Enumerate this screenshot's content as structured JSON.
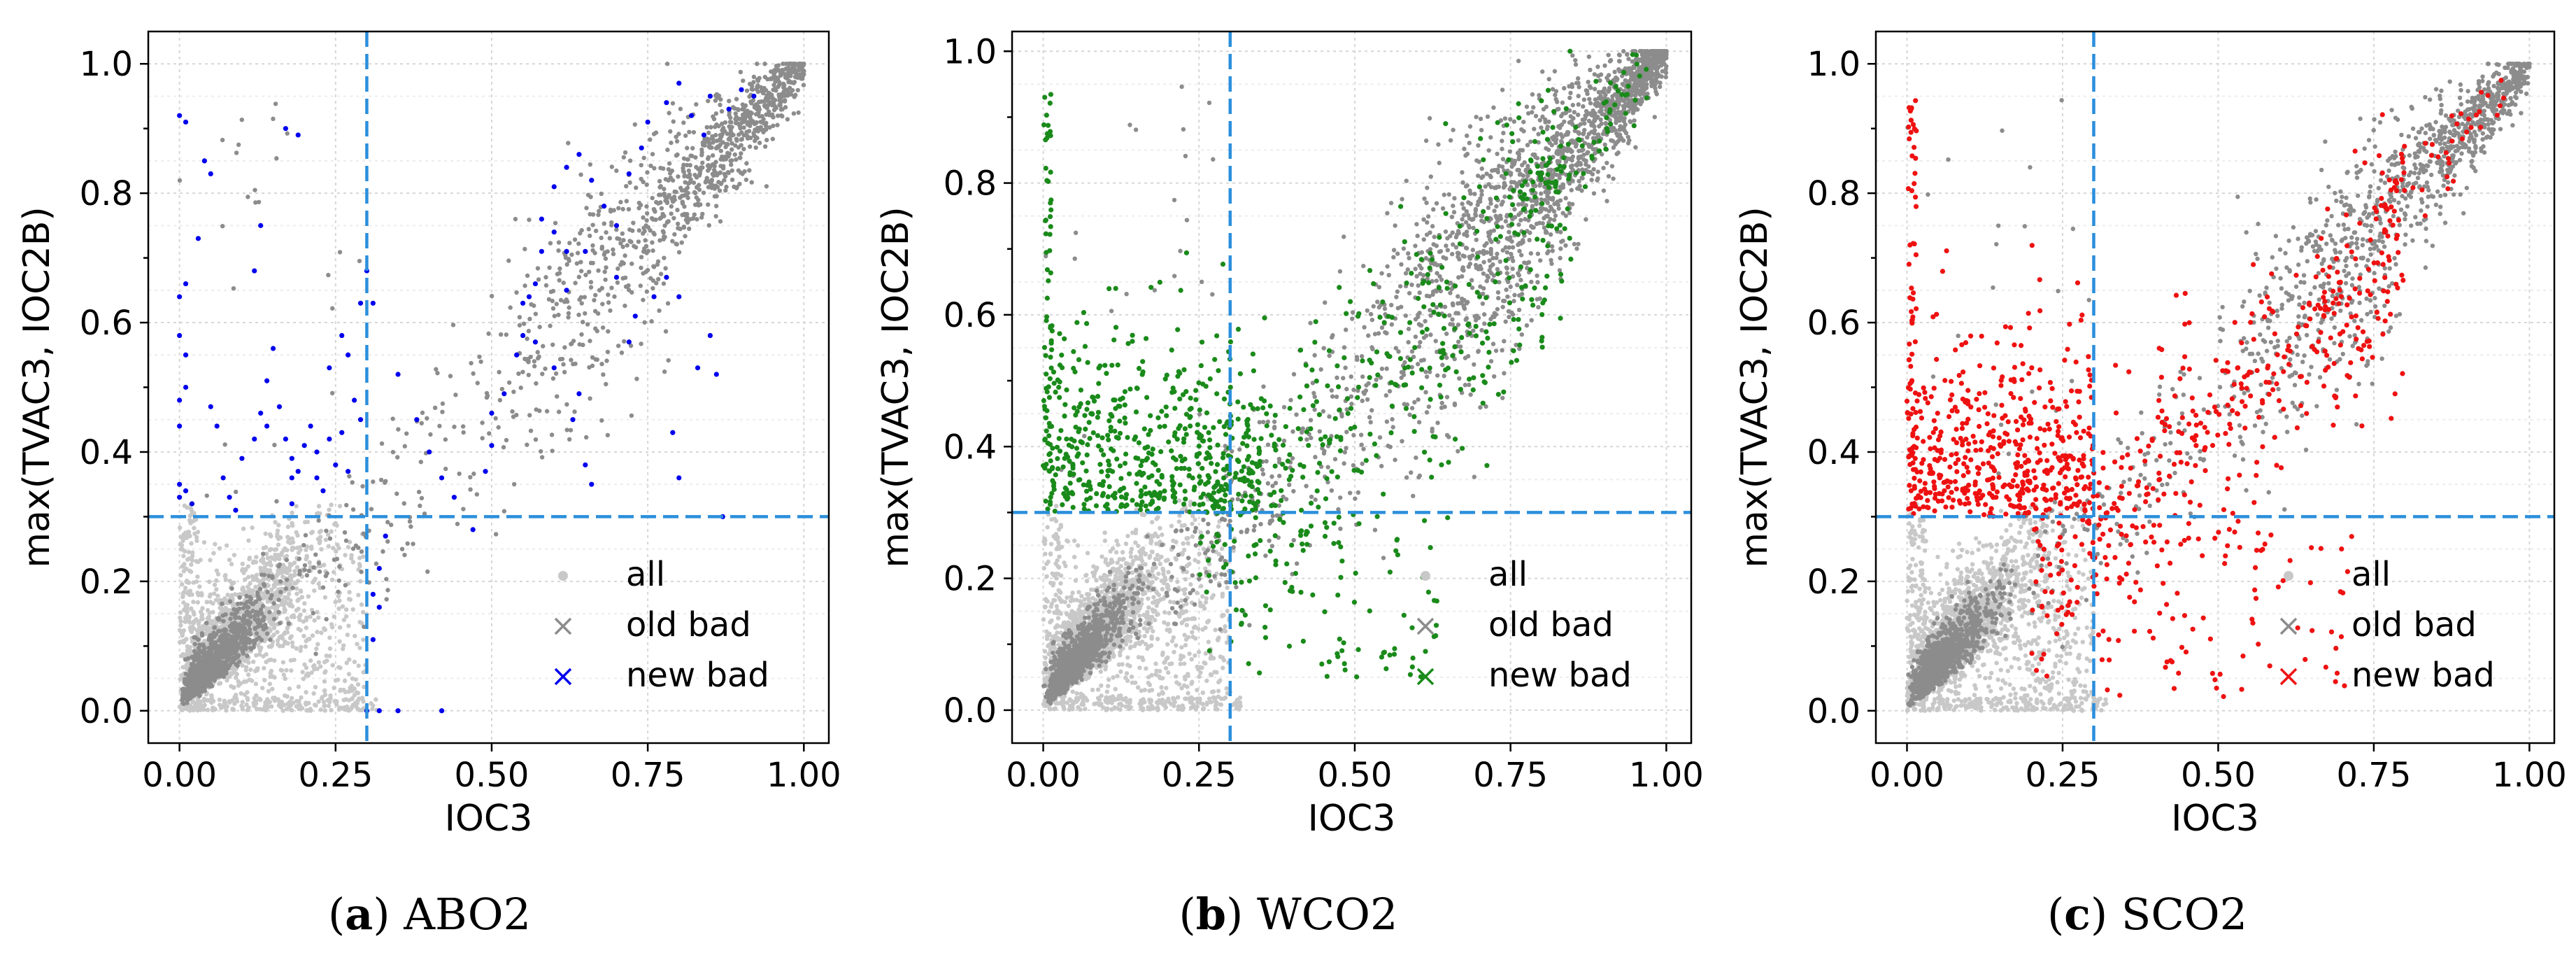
{
  "chart_data": [
    {
      "type": "scatter",
      "panel": "a",
      "caption_letter": "a",
      "caption_text": "ABO2",
      "xlabel": "IOC3",
      "ylabel": "max(TVAC3, IOC2B)",
      "xlim": [
        -0.05,
        1.04
      ],
      "ylim": [
        -0.05,
        1.05
      ],
      "xticks": [
        "0.00",
        "0.25",
        "0.50",
        "0.75",
        "1.00"
      ],
      "xtick_values": [
        0,
        0.25,
        0.5,
        0.75,
        1.0
      ],
      "yticks": [
        "0.0",
        "0.2",
        "0.4",
        "0.6",
        "0.8",
        "1.0"
      ],
      "ytick_values": [
        0,
        0.2,
        0.4,
        0.6,
        0.8,
        1.0
      ],
      "threshold_x": 0.3,
      "threshold_y": 0.3,
      "grid": true,
      "legend": [
        "all",
        "old bad",
        "new bad"
      ],
      "legend_position": "lower-right",
      "new_bad_color": "#0000ee",
      "series": [
        {
          "name": "all",
          "color": "#c8c8c8",
          "description": "dense cloud near origin (0-0.3) plus diagonal band to (1,1)"
        },
        {
          "name": "old bad",
          "color": "#8c8c8c",
          "description": "diagonal band 0.6-1.0 and cluster near origin"
        },
        {
          "name": "new bad",
          "color": "#0000ee",
          "points": [
            [
              0.0,
              0.92
            ],
            [
              0.01,
              0.91
            ],
            [
              0.0,
              0.64
            ],
            [
              0.01,
              0.66
            ],
            [
              0.0,
              0.58
            ],
            [
              0.01,
              0.55
            ],
            [
              0.0,
              0.48
            ],
            [
              0.01,
              0.5
            ],
            [
              0.0,
              0.44
            ],
            [
              0.0,
              0.35
            ],
            [
              0.01,
              0.34
            ],
            [
              0.0,
              0.33
            ],
            [
              0.02,
              0.32
            ],
            [
              0.04,
              0.85
            ],
            [
              0.05,
              0.83
            ],
            [
              0.03,
              0.73
            ],
            [
              0.05,
              0.47
            ],
            [
              0.06,
              0.44
            ],
            [
              0.07,
              0.36
            ],
            [
              0.08,
              0.33
            ],
            [
              0.09,
              0.31
            ],
            [
              0.1,
              0.39
            ],
            [
              0.12,
              0.42
            ],
            [
              0.13,
              0.46
            ],
            [
              0.14,
              0.44
            ],
            [
              0.14,
              0.51
            ],
            [
              0.16,
              0.47
            ],
            [
              0.17,
              0.42
            ],
            [
              0.18,
              0.39
            ],
            [
              0.18,
              0.36
            ],
            [
              0.18,
              0.32
            ],
            [
              0.19,
              0.37
            ],
            [
              0.2,
              0.41
            ],
            [
              0.21,
              0.44
            ],
            [
              0.22,
              0.4
            ],
            [
              0.22,
              0.36
            ],
            [
              0.23,
              0.34
            ],
            [
              0.24,
              0.42
            ],
            [
              0.25,
              0.38
            ],
            [
              0.26,
              0.43
            ],
            [
              0.27,
              0.37
            ],
            [
              0.17,
              0.9
            ],
            [
              0.19,
              0.89
            ],
            [
              0.13,
              0.75
            ],
            [
              0.15,
              0.56
            ],
            [
              0.12,
              0.68
            ],
            [
              0.28,
              0.48
            ],
            [
              0.29,
              0.45
            ],
            [
              0.3,
              0.68
            ],
            [
              0.31,
              0.63
            ],
            [
              0.31,
              0.18
            ],
            [
              0.32,
              0.16
            ],
            [
              0.31,
              0.11
            ],
            [
              0.33,
              0.27
            ],
            [
              0.32,
              0.22
            ],
            [
              0.32,
              0.0
            ],
            [
              0.35,
              0.0
            ],
            [
              0.42,
              0.0
            ],
            [
              0.3,
              0.0
            ],
            [
              0.47,
              0.28
            ],
            [
              0.49,
              0.37
            ],
            [
              0.5,
              0.41
            ],
            [
              0.5,
              0.46
            ],
            [
              0.52,
              0.49
            ],
            [
              0.54,
              0.55
            ],
            [
              0.55,
              0.58
            ],
            [
              0.55,
              0.63
            ],
            [
              0.56,
              0.64
            ],
            [
              0.57,
              0.66
            ],
            [
              0.58,
              0.71
            ],
            [
              0.6,
              0.74
            ],
            [
              0.62,
              0.71
            ],
            [
              0.64,
              0.49
            ],
            [
              0.63,
              0.45
            ],
            [
              0.65,
              0.38
            ],
            [
              0.66,
              0.35
            ],
            [
              0.58,
              0.76
            ],
            [
              0.6,
              0.81
            ],
            [
              0.62,
              0.84
            ],
            [
              0.64,
              0.86
            ],
            [
              0.66,
              0.82
            ],
            [
              0.68,
              0.78
            ],
            [
              0.7,
              0.75
            ],
            [
              0.72,
              0.83
            ],
            [
              0.74,
              0.87
            ],
            [
              0.75,
              0.91
            ],
            [
              0.78,
              0.94
            ],
            [
              0.8,
              0.97
            ],
            [
              0.82,
              0.92
            ],
            [
              0.84,
              0.89
            ],
            [
              0.85,
              0.95
            ],
            [
              0.88,
              0.93
            ],
            [
              0.9,
              0.96
            ],
            [
              0.92,
              0.95
            ],
            [
              0.78,
              0.67
            ],
            [
              0.8,
              0.64
            ],
            [
              0.83,
              0.53
            ],
            [
              0.85,
              0.58
            ],
            [
              0.86,
              0.52
            ],
            [
              0.87,
              0.3
            ],
            [
              0.8,
              0.36
            ],
            [
              0.79,
              0.43
            ],
            [
              0.7,
              0.67
            ],
            [
              0.76,
              0.64
            ],
            [
              0.73,
              0.61
            ],
            [
              0.72,
              0.57
            ],
            [
              0.6,
              0.53
            ],
            [
              0.57,
              0.57
            ],
            [
              0.62,
              0.65
            ],
            [
              0.65,
              0.71
            ],
            [
              0.35,
              0.52
            ],
            [
              0.38,
              0.45
            ],
            [
              0.4,
              0.4
            ],
            [
              0.42,
              0.36
            ],
            [
              0.44,
              0.33
            ],
            [
              0.24,
              0.53
            ],
            [
              0.27,
              0.55
            ],
            [
              0.29,
              0.63
            ],
            [
              0.26,
              0.58
            ]
          ]
        }
      ]
    },
    {
      "type": "scatter",
      "panel": "b",
      "caption_letter": "b",
      "caption_text": "WCO2",
      "xlabel": "IOC3",
      "ylabel": "max(TVAC3, IOC2B)",
      "xlim": [
        -0.05,
        1.04
      ],
      "ylim": [
        -0.05,
        1.03
      ],
      "xticks": [
        "0.00",
        "0.25",
        "0.50",
        "0.75",
        "1.00"
      ],
      "xtick_values": [
        0,
        0.25,
        0.5,
        0.75,
        1.0
      ],
      "yticks": [
        "0.0",
        "0.2",
        "0.4",
        "0.6",
        "0.8",
        "1.0"
      ],
      "ytick_values": [
        0,
        0.2,
        0.4,
        0.6,
        0.8,
        1.0
      ],
      "threshold_x": 0.3,
      "threshold_y": 0.3,
      "grid": true,
      "legend": [
        "all",
        "old bad",
        "new bad"
      ],
      "legend_position": "lower-right",
      "new_bad_color": "#1a8a1a",
      "series": [
        {
          "name": "all",
          "color": "#c8c8c8",
          "description": "dense cloud near origin plus broad diagonal band"
        },
        {
          "name": "old bad",
          "color": "#8c8c8c",
          "description": "diagonal band, cluster near origin"
        },
        {
          "name": "new bad",
          "color": "#1a8a1a",
          "description": "broad spread above y=0.3 and along diagonal, some below threshold right of x=0.3"
        }
      ]
    },
    {
      "type": "scatter",
      "panel": "c",
      "caption_letter": "c",
      "caption_text": "SCO2",
      "xlabel": "IOC3",
      "ylabel": "max(TVAC3, IOC2B)",
      "xlim": [
        -0.05,
        1.04
      ],
      "ylim": [
        -0.05,
        1.05
      ],
      "xticks": [
        "0.00",
        "0.25",
        "0.50",
        "0.75",
        "1.00"
      ],
      "xtick_values": [
        0,
        0.25,
        0.5,
        0.75,
        1.0
      ],
      "yticks": [
        "0.0",
        "0.2",
        "0.4",
        "0.6",
        "0.8",
        "1.0"
      ],
      "ytick_values": [
        0,
        0.2,
        0.4,
        0.6,
        0.8,
        1.0
      ],
      "threshold_x": 0.3,
      "threshold_y": 0.3,
      "grid": true,
      "legend": [
        "all",
        "old bad",
        "new bad"
      ],
      "legend_position": "lower-right",
      "new_bad_color": "#ee1111",
      "series": [
        {
          "name": "all",
          "color": "#c8c8c8",
          "description": "dense cloud near origin plus diagonal band"
        },
        {
          "name": "old bad",
          "color": "#8c8c8c",
          "description": "diagonal band, cluster near origin"
        },
        {
          "name": "new bad",
          "color": "#ee1111",
          "description": "dense spread above y=0.3 from x=0 to 0.8, some below threshold for x 0.3-0.7"
        }
      ]
    }
  ]
}
